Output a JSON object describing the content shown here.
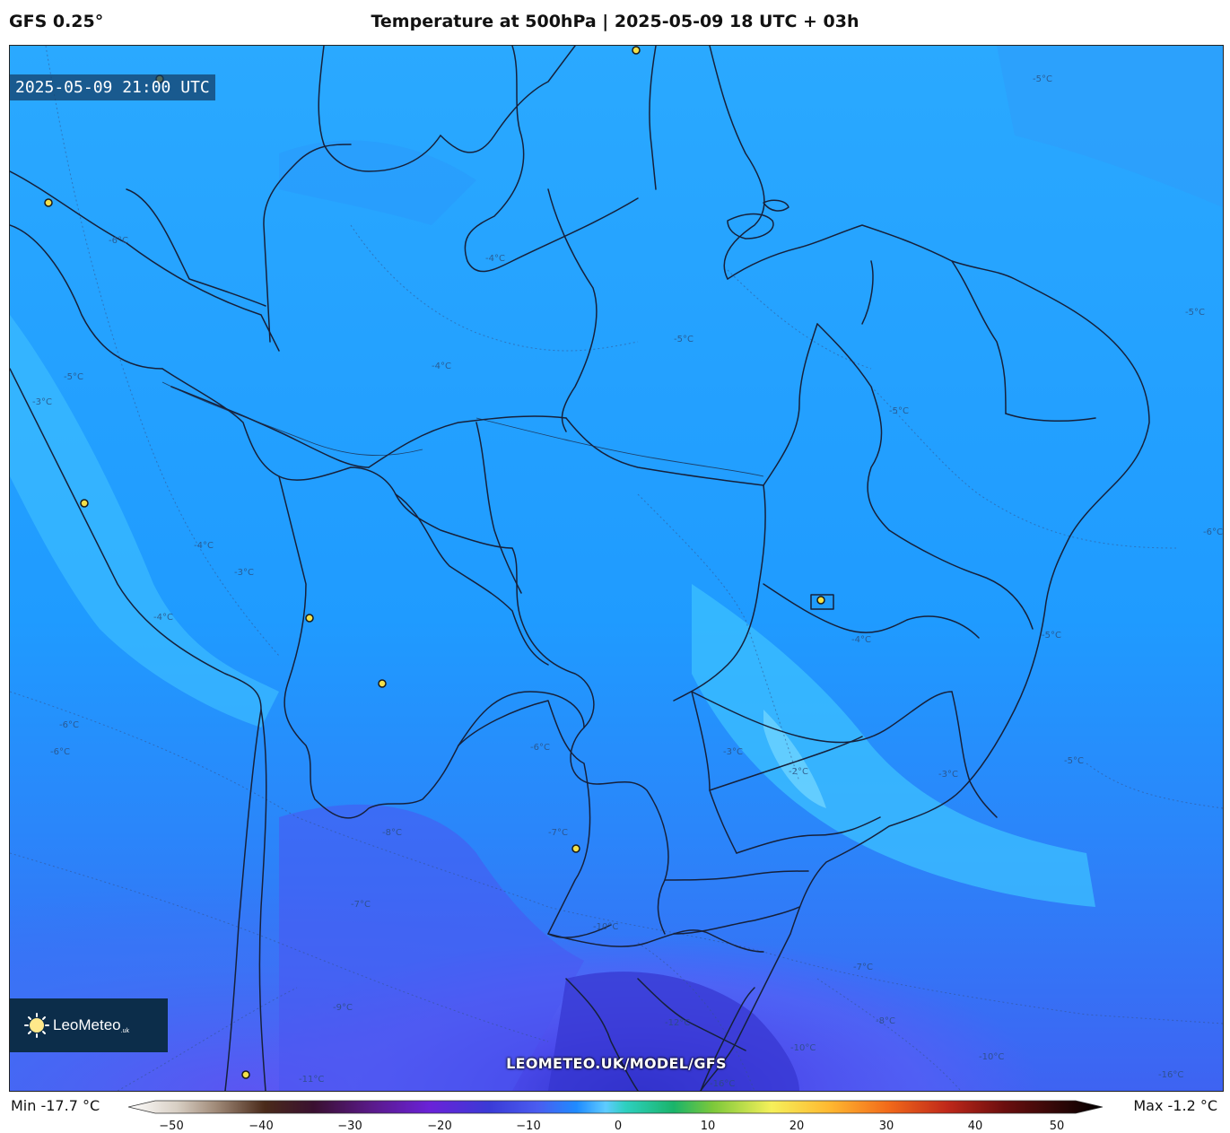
{
  "header": {
    "model": "GFS 0.25°",
    "title": "Temperature at 500hPa | 2025-05-09 18 UTC + 03h"
  },
  "map": {
    "valid_time": "2025-05-09 21:00 UTC",
    "watermark": "LEOMETEO.UK/MODEL/GFS",
    "logo": {
      "name": "LeoMeteo",
      "suffix": ".uk"
    },
    "contour_labels": [
      "-6°C",
      "-5°C",
      "-4°C",
      "-5°C",
      "-3°C",
      "-4°C",
      "-5°C",
      "-3°C",
      "-4°C",
      "-6°C",
      "-6°C",
      "-3°C",
      "-2°C",
      "-4°C",
      "-5°C",
      "-8°C",
      "-7°C",
      "-9°C",
      "-11°C",
      "-12°C",
      "-10°C",
      "-8°C",
      "-7°C",
      "-6°C",
      "-16°C",
      "-10°C",
      "-5°C",
      "-6°C",
      "-5°C",
      "-5°C",
      "-4°C",
      "-3°C",
      "-7°C",
      "-10°C",
      "-16°C"
    ]
  },
  "legend": {
    "min_label": "Min -17.7 °C",
    "max_label": "Max -1.2 °C",
    "ticks": [
      "−50",
      "−40",
      "−30",
      "−20",
      "−10",
      "0",
      "10",
      "20",
      "30",
      "40",
      "50"
    ]
  },
  "colors": {
    "field_warm": "#2eb8ff",
    "field_mid": "#1f9bff",
    "field_cool": "#2b7cf7",
    "field_cold": "#4a4ef0",
    "field_coldest": "#3a3ad6",
    "warm_patch": "#5ecbff",
    "border": "#1a2236",
    "logo_bg": "#0c2d4a",
    "marker": "#f2e04a"
  }
}
